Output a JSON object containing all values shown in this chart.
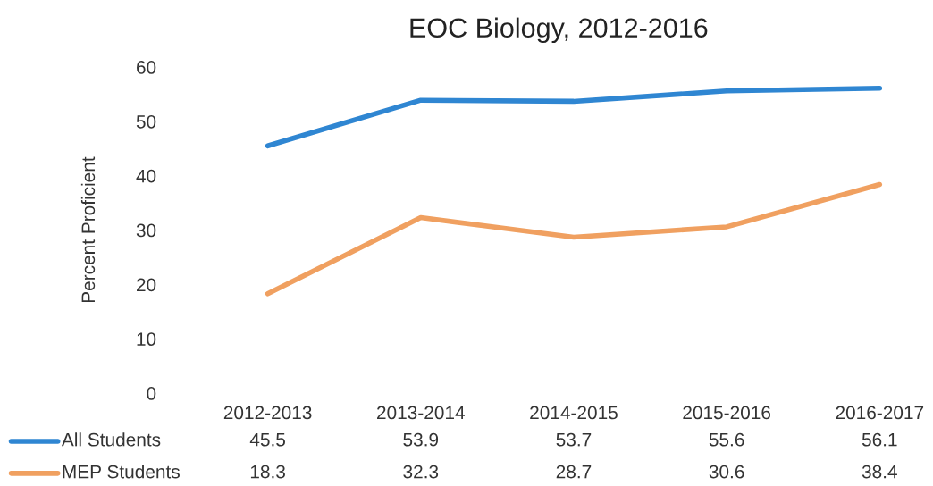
{
  "chart_data": {
    "type": "line",
    "title": "EOC Biology, 2012-2016",
    "ylabel": "Percent Proficient",
    "categories": [
      "2012-2013",
      "2013-2014",
      "2014-2015",
      "2015-2016",
      "2016-2017"
    ],
    "series": [
      {
        "name": "All Students",
        "color": "#2f86d2",
        "values": [
          45.5,
          53.9,
          53.7,
          55.6,
          56.1
        ]
      },
      {
        "name": "MEP Students",
        "color": "#f0a060",
        "values": [
          18.3,
          32.3,
          28.7,
          30.6,
          38.4
        ]
      }
    ],
    "ylim": [
      0,
      60
    ],
    "yticks": [
      0,
      10,
      20,
      30,
      40,
      50,
      60
    ],
    "grid": false,
    "legend": "bottom",
    "data_labels": true,
    "marker": "none",
    "line_style": "solid"
  }
}
